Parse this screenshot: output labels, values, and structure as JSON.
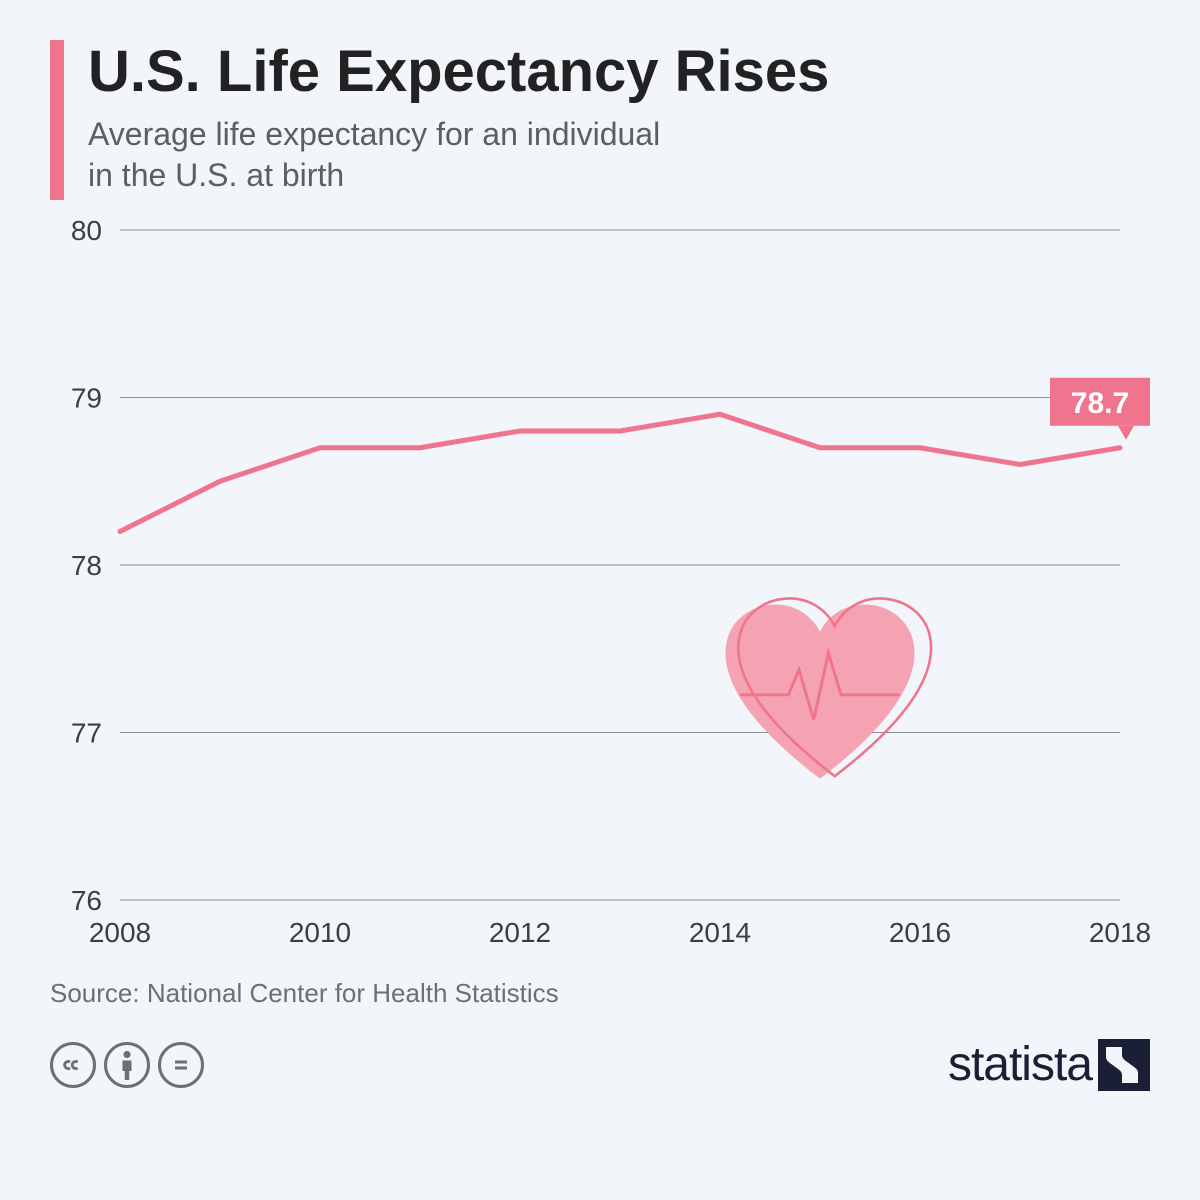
{
  "header": {
    "title": "U.S. Life Expectancy Rises",
    "subtitle": "Average life expectancy for an individual\nin the U.S. at birth",
    "accent_color": "#ef748e"
  },
  "chart": {
    "type": "line",
    "background": "#f2f5f9",
    "grid_color": "#888e94",
    "line_color": "#ef748e",
    "line_width": 5,
    "ylim": [
      76,
      80
    ],
    "yticks": [
      76,
      77,
      78,
      79,
      80
    ],
    "xlim": [
      2008,
      2018
    ],
    "xticks": [
      2008,
      2010,
      2012,
      2014,
      2016,
      2018
    ],
    "years": [
      2008,
      2009,
      2010,
      2011,
      2012,
      2013,
      2014,
      2015,
      2016,
      2017,
      2018
    ],
    "values": [
      78.2,
      78.5,
      78.7,
      78.7,
      78.8,
      78.8,
      78.9,
      78.7,
      78.7,
      78.6,
      78.7
    ],
    "callout": {
      "year": 2018,
      "label": "78.7",
      "bg": "#ef748e",
      "text_color": "#ffffff"
    },
    "axis_fontsize": 28,
    "heart_icon": {
      "cx_year": 2015,
      "cy_value": 77.2,
      "size": 210,
      "fill": "#f5a3b3",
      "outline": "#ef748e"
    }
  },
  "source": "Source: National Center for Health Statistics",
  "footer": {
    "cc_icons": [
      "cc",
      "by",
      "nd"
    ],
    "logo_text": "statista"
  }
}
